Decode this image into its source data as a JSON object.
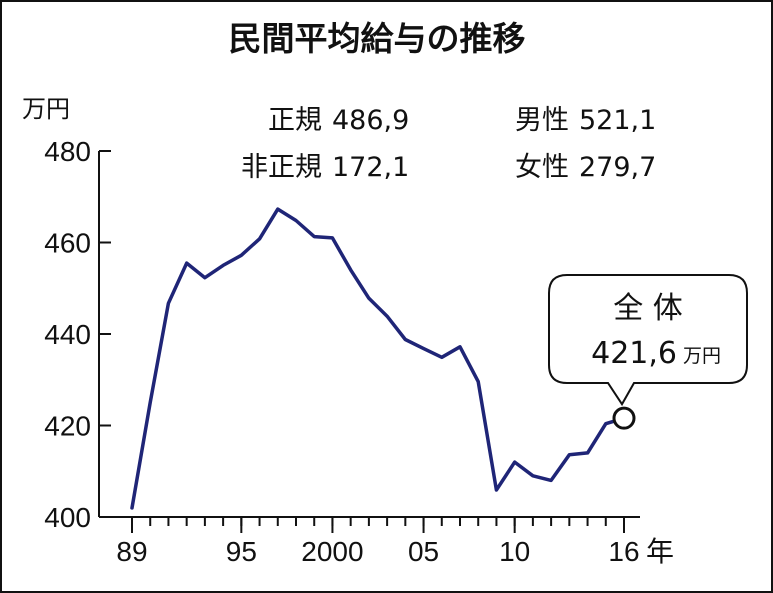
{
  "chart_data": {
    "type": "line",
    "title": "民間平均給与の推移",
    "ylabel": "万円",
    "xlabel_suffix": "年",
    "ylim": [
      400,
      480
    ],
    "yticks": [
      400,
      420,
      440,
      460,
      480
    ],
    "xlim": [
      1989,
      2016
    ],
    "xticks": [
      {
        "x": 1989,
        "label": "89"
      },
      {
        "x": 1995,
        "label": "95"
      },
      {
        "x": 2000,
        "label": "2000"
      },
      {
        "x": 2005,
        "label": "05"
      },
      {
        "x": 2010,
        "label": "10"
      },
      {
        "x": 2016,
        "label": "16"
      }
    ],
    "series": [
      {
        "x": [
          1989,
          1990,
          1991,
          1992,
          1993,
          1994,
          1995,
          1996,
          1997,
          1998,
          1999,
          2000,
          2001,
          2002,
          2003,
          2004,
          2005,
          2006,
          2007,
          2008,
          2009,
          2010,
          2011,
          2012,
          2013,
          2014,
          2015,
          2016
        ],
        "values": [
          402.0,
          425.0,
          446.7,
          455.5,
          452.3,
          455.0,
          457.2,
          460.8,
          467.3,
          464.8,
          461.3,
          461.0,
          454.0,
          447.8,
          443.9,
          438.8,
          436.8,
          434.9,
          437.2,
          429.6,
          405.9,
          412.0,
          409.0,
          408.0,
          413.6,
          414.0,
          420.4,
          421.6
        ]
      }
    ],
    "legend": {
      "regular_label": "正規",
      "regular_value": "486,9",
      "nonregular_label": "非正規",
      "nonregular_value": "172,1",
      "male_label": "男性",
      "male_value": "521,1",
      "female_label": "女性",
      "female_value": "279,7"
    },
    "callout": {
      "title": "全 体",
      "value": "421,6",
      "unit": "万円",
      "x": 2016,
      "y": 421.6
    },
    "colors": {
      "line": "#1f2577",
      "axis": "#111111",
      "marker_fill": "#ffffff"
    }
  }
}
